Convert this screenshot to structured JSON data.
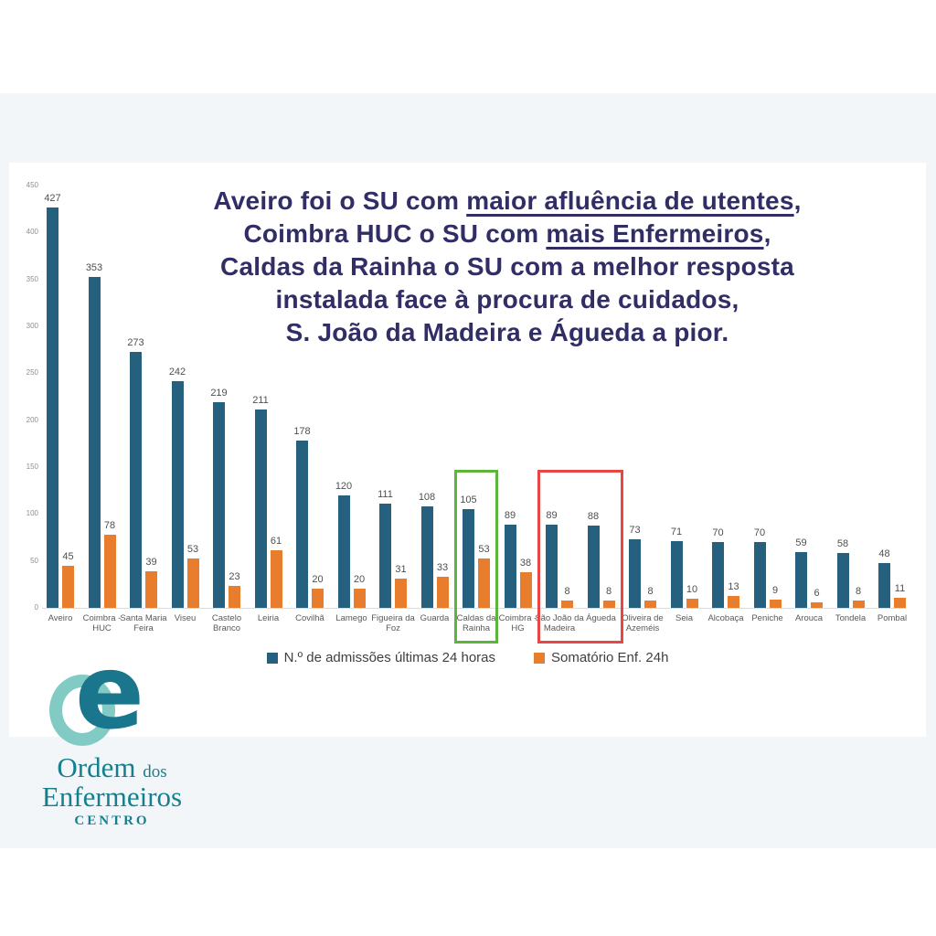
{
  "page": {
    "band_color": "#f2f6f9",
    "card_color": "#ffffff"
  },
  "title": {
    "color": "#312e66",
    "lines": [
      {
        "segments": [
          {
            "t": "Aveiro foi o SU com ",
            "u": false
          },
          {
            "t": "maior afluência de utentes",
            "u": true
          },
          {
            "t": ",",
            "u": false
          }
        ]
      },
      {
        "segments": [
          {
            "t": "Coimbra HUC o SU com ",
            "u": false
          },
          {
            "t": "mais Enfermeiros",
            "u": true
          },
          {
            "t": ",",
            "u": false
          }
        ]
      },
      {
        "segments": [
          {
            "t": "Caldas da Rainha o SU com a melhor resposta",
            "u": false
          }
        ]
      },
      {
        "segments": [
          {
            "t": "instalada face à procura de cuidados,",
            "u": false
          }
        ]
      },
      {
        "segments": [
          {
            "t": "S. João da Madeira e Águeda a pior.",
            "u": false
          }
        ]
      }
    ]
  },
  "chart_data": {
    "type": "bar",
    "title": "",
    "xlabel": "",
    "ylabel": "",
    "ylim": [
      0,
      450
    ],
    "yticks": [
      0,
      50,
      100,
      150,
      200,
      250,
      300,
      350,
      400,
      450
    ],
    "grid": false,
    "legend_position": "bottom",
    "categories": [
      "Aveiro",
      "Coimbra - HUC",
      "Santa Maria Feira",
      "Viseu",
      "Castelo Branco",
      "Leiria",
      "Covilhã",
      "Lamego",
      "Figueira da Foz",
      "Guarda",
      "Caldas da Rainha",
      "Coimbra - HG",
      "São João da Madeira",
      "Águeda",
      "Oliveira de Azeméis",
      "Seia",
      "Alcobaça",
      "Peniche",
      "Arouca",
      "Tondela",
      "Pombal"
    ],
    "category_label_lines": [
      [
        "Aveiro"
      ],
      [
        "Coimbra -",
        "HUC"
      ],
      [
        "Santa Maria",
        "Feira"
      ],
      [
        "Viseu"
      ],
      [
        "Castelo",
        "Branco"
      ],
      [
        "Leiria"
      ],
      [
        "Covilhã"
      ],
      [
        "Lamego"
      ],
      [
        "Figueira da",
        "Foz"
      ],
      [
        "Guarda"
      ],
      [
        "Caldas da",
        "Rainha"
      ],
      [
        "Coimbra -",
        "HG"
      ],
      [
        "São João da",
        "Madeira"
      ],
      [
        "Águeda"
      ],
      [
        "Oliveira de",
        "Azeméis"
      ],
      [
        "Seia"
      ],
      [
        "Alcobaça"
      ],
      [
        "Peniche"
      ],
      [
        "Arouca"
      ],
      [
        "Tondela"
      ],
      [
        "Pombal"
      ]
    ],
    "series": [
      {
        "name": "N.º de admissões últimas 24 horas",
        "color": "#25607f",
        "values": [
          427,
          353,
          273,
          242,
          219,
          211,
          178,
          120,
          111,
          108,
          105,
          89,
          89,
          88,
          73,
          71,
          70,
          70,
          59,
          58,
          48
        ]
      },
      {
        "name": "Somatório Enf. 24h",
        "color": "#e87d2e",
        "values": [
          45,
          78,
          39,
          53,
          23,
          61,
          20,
          20,
          31,
          33,
          53,
          38,
          8,
          8,
          8,
          10,
          13,
          9,
          6,
          8,
          11
        ]
      }
    ],
    "highlights": [
      {
        "shape": "box",
        "color": "#5db53c",
        "from": "Caldas da Rainha",
        "to": "Caldas da Rainha"
      },
      {
        "shape": "box",
        "color": "#e84545",
        "from": "São João da Madeira",
        "to": "Águeda"
      }
    ]
  },
  "legend": {
    "items": [
      {
        "label": "N.º de admissões últimas 24 horas",
        "color": "#25607f"
      },
      {
        "label": "Somatório Enf. 24h",
        "color": "#e87d2e"
      }
    ]
  },
  "logo": {
    "e_glyph": "e",
    "line1_main": "Ordem",
    "line1_small": "dos",
    "line2": "Enfermeiros",
    "line3": "CENTRO",
    "ring_color": "#82cbc4",
    "e_color": "#19768d",
    "text_color": "#15808d"
  }
}
